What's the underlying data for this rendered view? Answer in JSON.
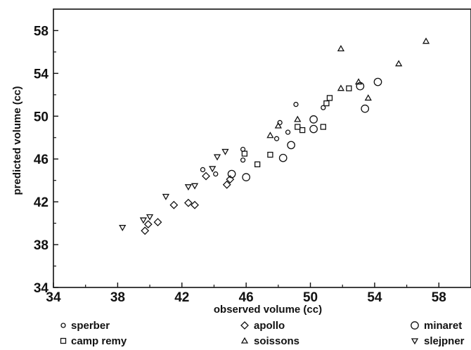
{
  "chart_data": {
    "type": "scatter",
    "title": "",
    "xlabel": "observed volume (cc)",
    "ylabel": "predicted volume (cc)",
    "xlim": [
      34,
      60
    ],
    "ylim": [
      34,
      60
    ],
    "x_ticks": [
      "34",
      "38",
      "42",
      "46",
      "50",
      "54",
      "58"
    ],
    "y_ticks": [
      "34",
      "38",
      "42",
      "46",
      "50",
      "54",
      "58"
    ],
    "grid": false,
    "legend_position": "bottom",
    "series": [
      {
        "name": "sperber",
        "marker": "small-circle",
        "points": [
          [
            43.3,
            45.0
          ],
          [
            44.1,
            44.6
          ],
          [
            45.8,
            46.9
          ],
          [
            45.8,
            45.9
          ],
          [
            47.9,
            47.9
          ],
          [
            48.1,
            49.4
          ],
          [
            48.6,
            48.5
          ],
          [
            49.1,
            51.1
          ],
          [
            50.8,
            50.8
          ]
        ]
      },
      {
        "name": "apollo",
        "marker": "diamond",
        "points": [
          [
            39.7,
            39.3
          ],
          [
            39.9,
            39.9
          ],
          [
            40.5,
            40.1
          ],
          [
            41.5,
            41.7
          ],
          [
            42.4,
            41.9
          ],
          [
            42.8,
            41.7
          ],
          [
            43.5,
            44.4
          ],
          [
            44.8,
            43.6
          ],
          [
            45.0,
            44.1
          ]
        ]
      },
      {
        "name": "minaret",
        "marker": "large-circle",
        "points": [
          [
            45.1,
            44.6
          ],
          [
            46.0,
            44.3
          ],
          [
            48.3,
            46.1
          ],
          [
            48.8,
            47.3
          ],
          [
            50.2,
            48.8
          ],
          [
            50.2,
            49.7
          ],
          [
            53.1,
            52.8
          ],
          [
            53.4,
            50.7
          ],
          [
            54.2,
            53.2
          ]
        ]
      },
      {
        "name": "camp remy",
        "marker": "square",
        "points": [
          [
            45.9,
            46.5
          ],
          [
            46.7,
            45.5
          ],
          [
            47.5,
            46.4
          ],
          [
            49.2,
            49.0
          ],
          [
            49.5,
            48.7
          ],
          [
            50.8,
            49.0
          ],
          [
            51.0,
            51.2
          ],
          [
            51.2,
            51.7
          ],
          [
            52.4,
            52.6
          ]
        ]
      },
      {
        "name": "soissons",
        "marker": "triangle-up",
        "points": [
          [
            47.5,
            48.2
          ],
          [
            48.0,
            49.1
          ],
          [
            49.2,
            49.7
          ],
          [
            51.9,
            52.6
          ],
          [
            51.9,
            56.3
          ],
          [
            53.0,
            53.2
          ],
          [
            53.6,
            51.7
          ],
          [
            55.5,
            54.9
          ],
          [
            57.2,
            57.0
          ]
        ]
      },
      {
        "name": "slejpner",
        "marker": "triangle-down",
        "points": [
          [
            38.3,
            39.6
          ],
          [
            39.6,
            40.3
          ],
          [
            40.0,
            40.6
          ],
          [
            41.0,
            42.5
          ],
          [
            42.4,
            43.4
          ],
          [
            42.8,
            43.5
          ],
          [
            43.9,
            45.1
          ],
          [
            44.2,
            46.2
          ],
          [
            44.7,
            46.7
          ]
        ]
      }
    ]
  }
}
